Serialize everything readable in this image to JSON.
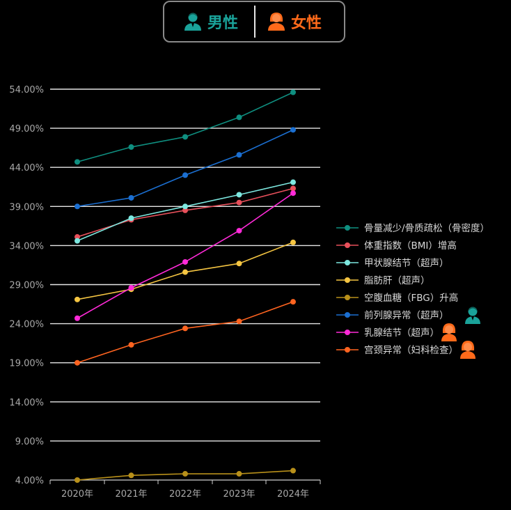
{
  "toggle": {
    "male_label": "男性",
    "female_label": "女性",
    "male_icon": "male-avatar-icon",
    "female_icon": "female-avatar-icon",
    "male_color": "#1aa39a",
    "female_color": "#ff6a1a"
  },
  "chart_data": {
    "type": "line",
    "title": "",
    "xlabel": "",
    "ylabel": "",
    "categories": [
      "2020年",
      "2021年",
      "2022年",
      "2023年",
      "2024年"
    ],
    "y_ticks": [
      "54.00%",
      "49.00%",
      "44.00%",
      "39.00%",
      "34.00%",
      "29.00%",
      "24.00%",
      "19.00%",
      "14.00%",
      "9.00%",
      "4.00%"
    ],
    "ylim": [
      4,
      54
    ],
    "grid": true,
    "legend_position": "right",
    "series": [
      {
        "name": "骨量减少/骨质疏松（骨密度）",
        "color": "#0f8f80",
        "values": [
          44.7,
          46.6,
          47.9,
          50.4,
          53.6
        ],
        "gender": ""
      },
      {
        "name": "体重指数（BMI）增高",
        "color": "#e8505b",
        "values": [
          35.1,
          37.3,
          38.5,
          39.5,
          41.3
        ],
        "gender": ""
      },
      {
        "name": "甲状腺结节（超声）",
        "color": "#7de8e0",
        "values": [
          34.6,
          37.5,
          39.0,
          40.5,
          42.1
        ],
        "gender": ""
      },
      {
        "name": "脂肪肝（超声）",
        "color": "#f5c542",
        "values": [
          27.1,
          28.4,
          30.6,
          31.7,
          34.4
        ],
        "gender": ""
      },
      {
        "name": "空腹血糖（FBG）升高",
        "color": "#b8901a",
        "values": [
          4.0,
          4.6,
          4.8,
          4.8,
          5.2
        ],
        "gender": ""
      },
      {
        "name": "前列腺异常（超声）",
        "color": "#1b6fd1",
        "values": [
          39.0,
          40.1,
          43.0,
          45.6,
          48.8
        ],
        "gender": "male"
      },
      {
        "name": "乳腺结节（超声）",
        "color": "#ff2ad8",
        "values": [
          24.7,
          28.6,
          31.9,
          35.9,
          40.7
        ],
        "gender": "female"
      },
      {
        "name": "宫颈异常（妇科检查）",
        "color": "#ff6420",
        "values": [
          19.0,
          21.3,
          23.4,
          24.3,
          26.8
        ],
        "gender": "female"
      }
    ]
  }
}
